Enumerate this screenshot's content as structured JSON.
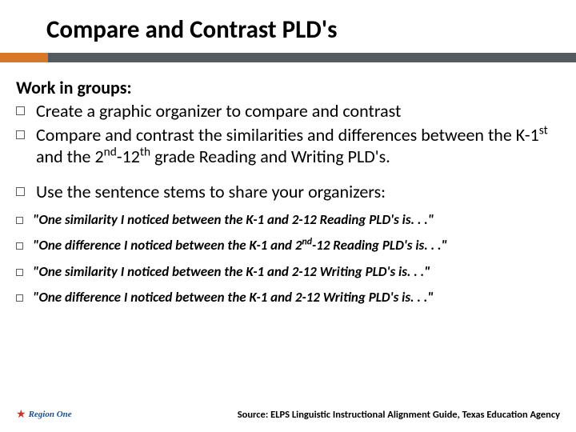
{
  "title": "Compare and Contrast PLD's",
  "intro": "Work in groups:",
  "bullets_main": [
    "Create a graphic organizer to compare and contrast",
    "Compare and contrast the similarities and differences between the K-1<sup>st</sup> and the 2<sup>nd</sup>-12<sup>th</sup> grade Reading and Writing PLD's."
  ],
  "bullet_mid": "Use the  sentence stems to share your organizers:",
  "bullets_italic": [
    "\"One similarity I noticed between the K-1 and 2-12 Reading PLD's is. . .\"",
    "\"One difference I noticed between the K-1 and 2<sup>nd</sup>-12 Reading PLD's is. . .\"",
    "\"One similarity I noticed between the K-1 and 2-12 Writing PLD's is. . .\"",
    "\"One difference I noticed between the K-1 and 2-12 Writing PLD's is. . .\""
  ],
  "logo_text": "Region One",
  "source": "Source: ELPS Linguistic Instructional Alignment Guide, Texas Education Agency",
  "colors": {
    "accent_orange": "#d7772a",
    "accent_gray": "#555a5f",
    "bullet_border": "#5a5f64",
    "star": "#c0392b",
    "logo_blue": "#1a4f8a"
  }
}
